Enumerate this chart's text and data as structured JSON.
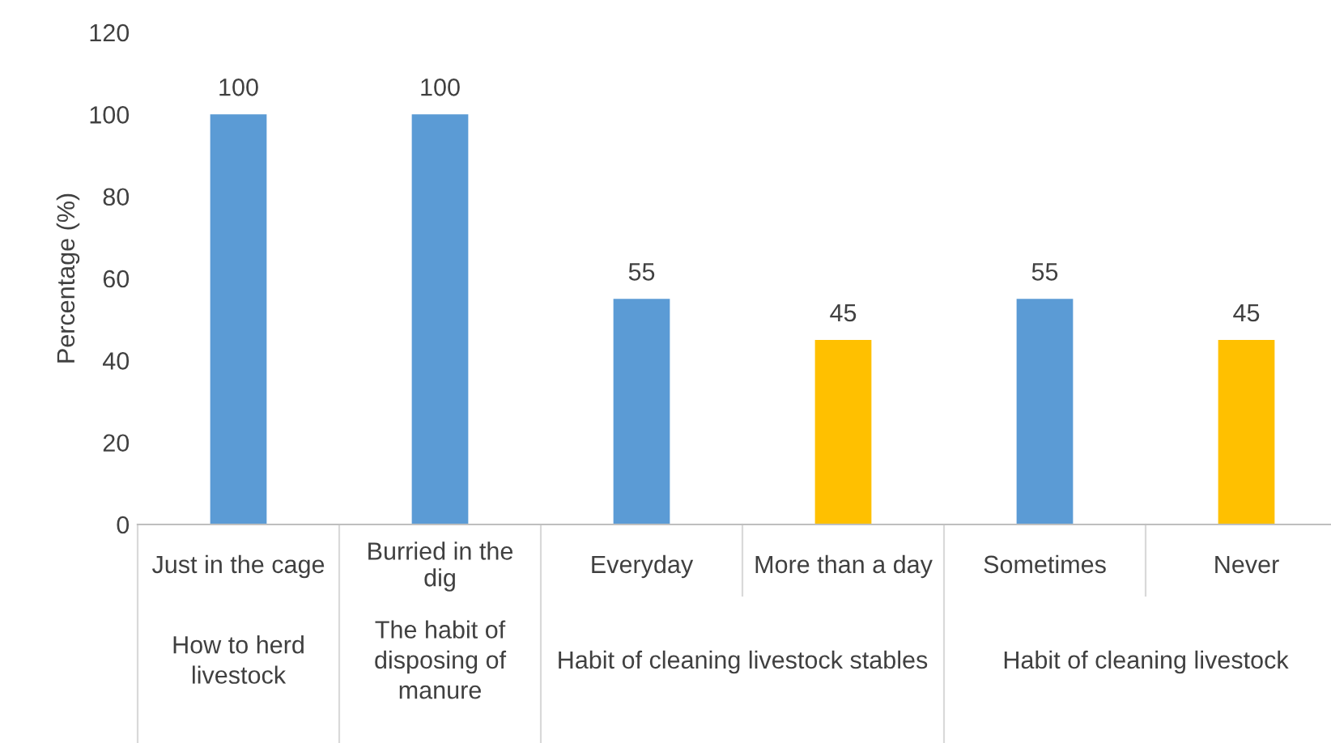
{
  "chart_data": {
    "type": "bar",
    "ylabel": "Percentage (%)",
    "categories": [
      "Just in the cage",
      "Burried in the\ndig",
      "Everyday",
      "More than a day",
      "Sometimes",
      "Never"
    ],
    "values": [
      100,
      100,
      55,
      45,
      55,
      45
    ],
    "colors": [
      "#5b9bd5",
      "#5b9bd5",
      "#5b9bd5",
      "#ffc000",
      "#5b9bd5",
      "#ffc000"
    ],
    "ylim": [
      0,
      120
    ],
    "yticks": [
      0,
      20,
      40,
      60,
      80,
      100,
      120
    ],
    "data_labels": true,
    "annotations": [
      "How to herd\nlivestock",
      "The habit of\ndisposing of\nmanure",
      "Habit of cleaning livestock stables",
      "Habit of cleaning livestock"
    ]
  }
}
